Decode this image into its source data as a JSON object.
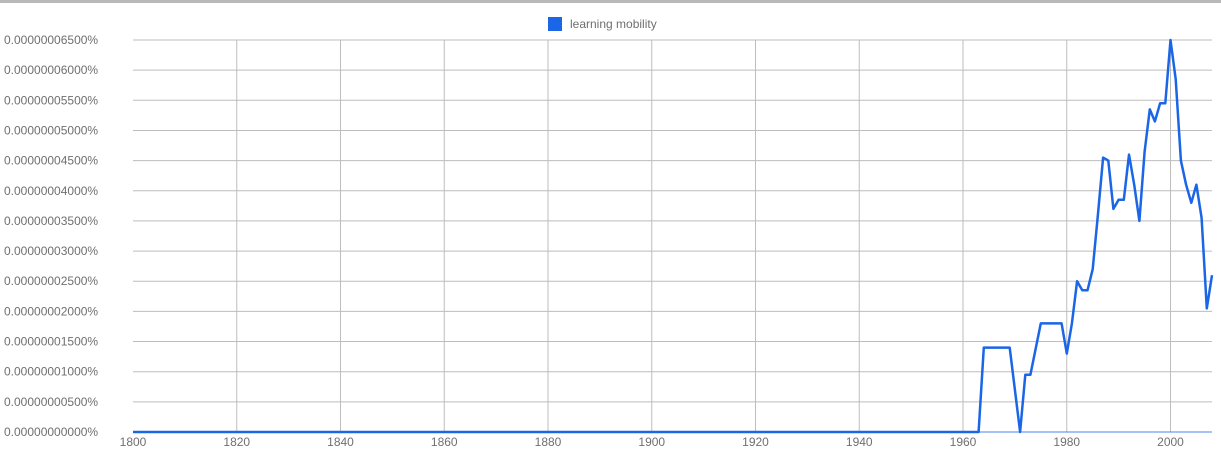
{
  "chart_data": {
    "type": "line",
    "title": "",
    "xlabel": "",
    "ylabel": "",
    "xlim": [
      1800,
      2008
    ],
    "ylim": [
      0,
      6.5e-08
    ],
    "grid": true,
    "legend_placement": "top-center",
    "x_ticks": [
      "1800",
      "1820",
      "1840",
      "1860",
      "1880",
      "1900",
      "1920",
      "1940",
      "1960",
      "1980",
      "2000"
    ],
    "y_ticks": [
      "0.00000000000%",
      "0.00000000500%",
      "0.00000001000%",
      "0.00000001500%",
      "0.00000002000%",
      "0.00000002500%",
      "0.00000003000%",
      "0.00000003500%",
      "0.00000004000%",
      "0.00000004500%",
      "0.00000005000%",
      "0.00000005500%",
      "0.00000006000%",
      "0.00000006500%"
    ],
    "series": [
      {
        "name": "learning mobility",
        "color": "#1a66e6",
        "x": [
          1800,
          1962,
          1963,
          1964,
          1969,
          1970,
          1971,
          1972,
          1973,
          1975,
          1976,
          1979,
          1980,
          1981,
          1982,
          1983,
          1984,
          1985,
          1986,
          1987,
          1988,
          1989,
          1990,
          1991,
          1992,
          1993,
          1994,
          1995,
          1996,
          1997,
          1998,
          1999,
          2000,
          2001,
          2002,
          2003,
          2004,
          2005,
          2006,
          2007,
          2008
        ],
        "y": [
          0,
          0,
          0,
          1.4e-08,
          1.4e-08,
          7e-09,
          0,
          9.5e-09,
          9.5e-09,
          1.8e-08,
          1.8e-08,
          1.8e-08,
          1.3e-08,
          1.8e-08,
          2.5e-08,
          2.35e-08,
          2.35e-08,
          2.7e-08,
          3.6e-08,
          4.55e-08,
          4.5e-08,
          3.7e-08,
          3.85e-08,
          3.85e-08,
          4.6e-08,
          4.1e-08,
          3.5e-08,
          4.65e-08,
          5.35e-08,
          5.15e-08,
          5.45e-08,
          5.45e-08,
          6.5e-08,
          5.85e-08,
          4.5e-08,
          4.1e-08,
          3.8e-08,
          4.1e-08,
          3.55e-08,
          2.05e-08,
          2.6e-08
        ]
      }
    ]
  }
}
